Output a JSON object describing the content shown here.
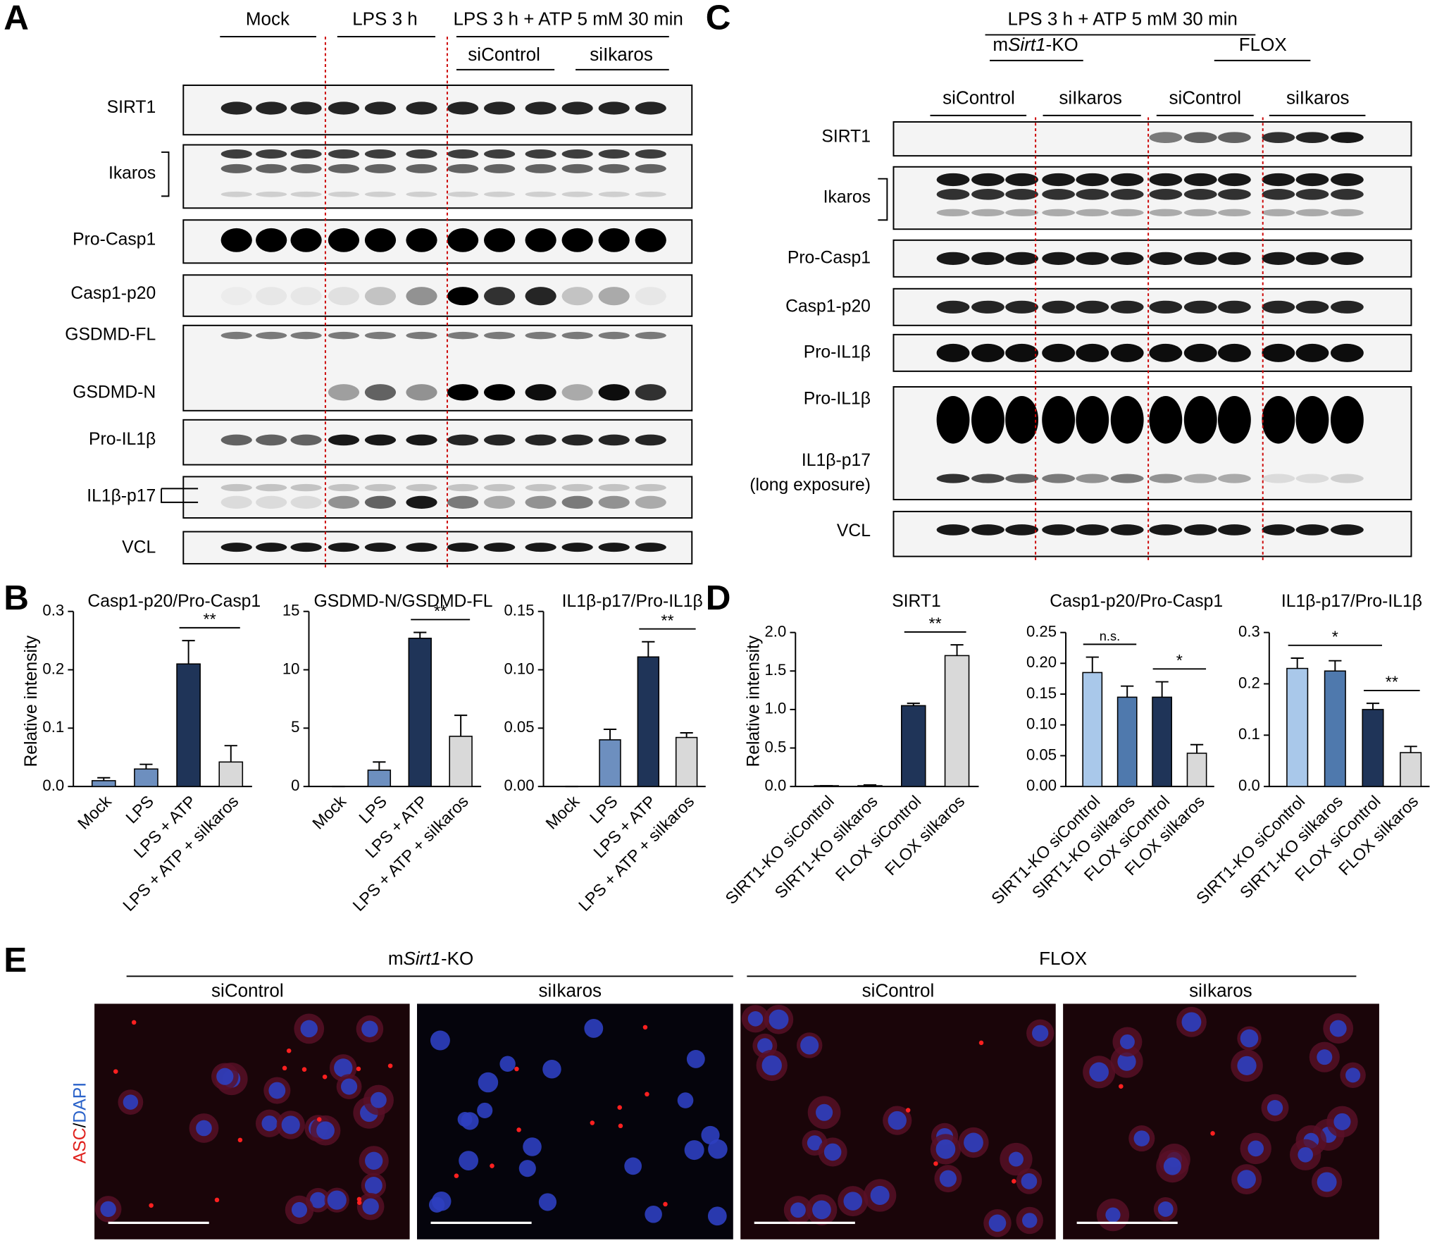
{
  "panel_labels": [
    "A",
    "B",
    "C",
    "D",
    "E"
  ],
  "blot_a": {
    "headers": [
      "Mock",
      "LPS 3 h",
      "LPS 3 h + ATP 5 mM 30 min",
      "siControl",
      "siIkaros"
    ],
    "rows": [
      "SIRT1",
      "Ikaros",
      "Pro-Casp1",
      "Casp1-p20",
      "GSDMD-FL",
      "GSDMD-N",
      "Pro-IL1β",
      "IL1β-p17",
      "VCL"
    ]
  },
  "blot_c": {
    "header": "LPS 3 h + ATP 5 mM 30 min",
    "genotypes": [
      {
        "prefix": "m",
        "italic": "Sirt1",
        "suffix": "-KO"
      },
      "FLOX"
    ],
    "treatments": [
      "siControl",
      "siIkaros",
      "siControl",
      "siIkaros"
    ],
    "rows": [
      "SIRT1",
      "Ikaros",
      "Pro-Casp1",
      "Casp1-p20",
      "Pro-IL1β",
      "Pro-IL1β",
      "IL1β-p17",
      "(long exposure)",
      "VCL"
    ]
  },
  "chart_data": [
    {
      "type": "bar",
      "title": "Casp1-p20/Pro-Casp1",
      "ylabel": "Relative intensity",
      "categories": [
        "Mock",
        "LPS",
        "LPS + ATP",
        "LPS + ATP + siIkaros"
      ],
      "values": [
        0.01,
        0.03,
        0.21,
        0.042
      ],
      "errors": [
        0.005,
        0.008,
        0.04,
        0.028
      ],
      "colors": [
        "#6d8fbf",
        "#6d8fbf",
        "#1f3458",
        "#d9d9d9"
      ],
      "ylim": [
        0,
        0.3
      ],
      "yticks": [
        {
          "value": 0,
          "label": "0.0"
        },
        0.1,
        0.2,
        0.3
      ],
      "significance": [
        {
          "bars": [
            2,
            3
          ],
          "label": "**"
        }
      ]
    },
    {
      "type": "bar",
      "title": "GSDMD-N/GSDMD-FL",
      "categories": [
        "Mock",
        "LPS",
        "LPS + ATP",
        "LPS + ATP + siIkaros"
      ],
      "values": [
        0,
        1.4,
        12.7,
        4.3
      ],
      "errors": [
        0,
        0.7,
        0.5,
        1.8
      ],
      "colors": [
        "#6d8fbf",
        "#6d8fbf",
        "#1f3458",
        "#d9d9d9"
      ],
      "ylim": [
        0,
        15
      ],
      "yticks": [
        0,
        5,
        10,
        15
      ],
      "significance": [
        {
          "bars": [
            2,
            3
          ],
          "label": "**"
        }
      ]
    },
    {
      "type": "bar",
      "title": "IL1β-p17/Pro-IL1β",
      "categories": [
        "Mock",
        "LPS",
        "LPS + ATP",
        "LPS + ATP + siIkaros"
      ],
      "values": [
        0,
        0.04,
        0.111,
        0.042
      ],
      "errors": [
        0,
        0.009,
        0.013,
        0.004
      ],
      "colors": [
        "#6d8fbf",
        "#6d8fbf",
        "#1f3458",
        "#d9d9d9"
      ],
      "ylim": [
        0,
        0.15
      ],
      "yticks": [
        {
          "value": 0,
          "label": "0.00"
        },
        0.05,
        {
          "value": 0.1,
          "label": "0.10"
        },
        0.15
      ],
      "significance": [
        {
          "bars": [
            2,
            3
          ],
          "label": "**"
        }
      ]
    },
    {
      "type": "bar",
      "title": "SIRT1",
      "ylabel": "Relative intensity",
      "categories": [
        "SIRT1-KO siControl",
        "SIRT1-KO siIkaros",
        "FLOX siControl",
        "FLOX siIkaros"
      ],
      "values": [
        0.01,
        0.01,
        1.05,
        1.7
      ],
      "errors": [
        0,
        0.01,
        0.03,
        0.14
      ],
      "colors": [
        "#a9c8ea",
        "#4f79ad",
        "#1f3458",
        "#d9d9d9"
      ],
      "ylim": [
        0,
        2
      ],
      "yticks": [
        {
          "value": 0,
          "label": "0.0"
        },
        0.5,
        {
          "value": 1,
          "label": "1.0"
        },
        1.5,
        {
          "value": 2,
          "label": "2.0"
        }
      ],
      "significance": [
        {
          "bars": [
            2,
            3
          ],
          "label": "**"
        }
      ]
    },
    {
      "type": "bar",
      "title": "Casp1-p20/Pro-Casp1",
      "categories": [
        "SIRT1-KO siControl",
        "SIRT1-KO siIkaros",
        "FLOX siControl",
        "FLOX siIkaros"
      ],
      "values": [
        0.185,
        0.145,
        0.145,
        0.054
      ],
      "errors": [
        0.025,
        0.018,
        0.025,
        0.014
      ],
      "colors": [
        "#a9c8ea",
        "#4f79ad",
        "#1f3458",
        "#d9d9d9"
      ],
      "ylim": [
        0,
        0.25
      ],
      "yticks": [
        {
          "value": 0,
          "label": "0.00"
        },
        0.05,
        {
          "value": 0.1,
          "label": "0.10"
        },
        0.15,
        {
          "value": 0.2,
          "label": "0.20"
        },
        0.25
      ],
      "significance": [
        {
          "bars": [
            0,
            1
          ],
          "label": "n.s."
        },
        {
          "bars": [
            2,
            3
          ],
          "label": "*"
        }
      ]
    },
    {
      "type": "bar",
      "title": "IL1β-p17/Pro-IL1β",
      "categories": [
        "SIRT1-KO siControl",
        "SIRT1-KO siIkaros",
        "FLOX siControl",
        "FLOX siIkaros"
      ],
      "values": [
        0.23,
        0.225,
        0.15,
        0.066
      ],
      "errors": [
        0.02,
        0.02,
        0.012,
        0.012
      ],
      "colors": [
        "#a9c8ea",
        "#4f79ad",
        "#1f3458",
        "#d9d9d9"
      ],
      "ylim": [
        0,
        0.3
      ],
      "yticks": [
        {
          "value": 0,
          "label": "0.0"
        },
        0.1,
        0.2,
        0.3
      ],
      "significance": [
        {
          "bars": [
            0,
            2
          ],
          "label": "*"
        },
        {
          "bars": [
            2,
            3
          ],
          "label": "**"
        }
      ]
    }
  ],
  "panel_e": {
    "stain": [
      "ASC",
      "/",
      "DAPI"
    ],
    "genotypes": [
      {
        "prefix": "m",
        "italic": "Sirt1",
        "suffix": "-KO"
      },
      "FLOX"
    ],
    "treatments": [
      "siControl",
      "siIkaros",
      "siControl",
      "siIkaros"
    ]
  }
}
